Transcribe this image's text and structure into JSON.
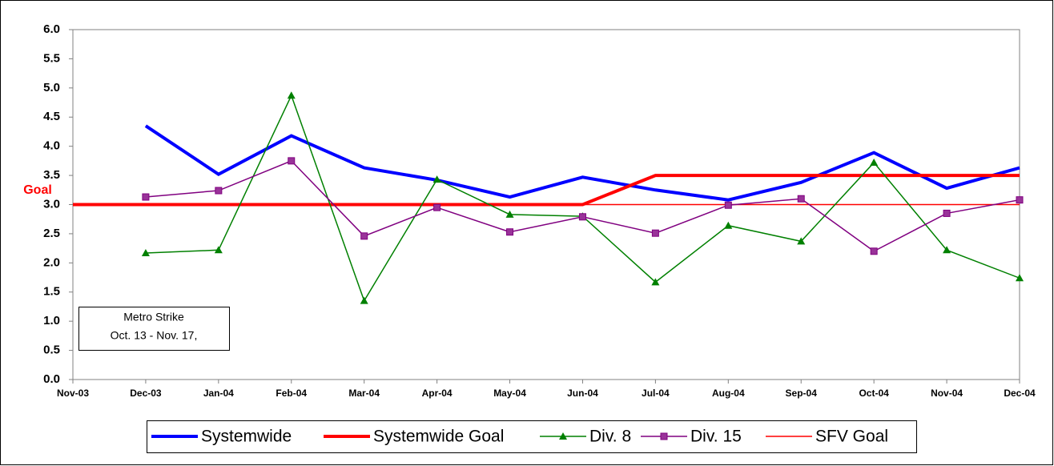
{
  "chart_data": {
    "type": "line",
    "categories": [
      "Nov-03",
      "Dec-03",
      "Jan-04",
      "Feb-04",
      "Mar-04",
      "Apr-04",
      "May-04",
      "Jun-04",
      "Jul-04",
      "Aug-04",
      "Sep-04",
      "Oct-04",
      "Nov-04",
      "Dec-04"
    ],
    "series": [
      {
        "name": "Systemwide",
        "color": "#0000ff",
        "values": [
          null,
          4.35,
          3.52,
          4.18,
          3.63,
          3.42,
          3.13,
          3.47,
          3.25,
          3.08,
          3.38,
          3.89,
          3.28,
          3.63
        ]
      },
      {
        "name": "Systemwide Goal",
        "color": "#ff0000",
        "values": [
          3.0,
          3.0,
          3.0,
          3.0,
          3.0,
          3.0,
          3.0,
          3.0,
          3.5,
          3.5,
          3.5,
          3.5,
          3.5,
          3.5
        ]
      },
      {
        "name": "Div. 8",
        "color": "#008000",
        "marker": "triangle",
        "values": [
          null,
          2.17,
          2.22,
          4.87,
          1.35,
          3.43,
          2.83,
          2.8,
          1.67,
          2.64,
          2.37,
          3.72,
          2.22,
          1.74
        ]
      },
      {
        "name": "Div. 15",
        "color": "#800080",
        "marker": "square",
        "values": [
          null,
          3.13,
          3.24,
          3.75,
          2.46,
          2.95,
          2.53,
          2.79,
          2.51,
          2.99,
          3.1,
          2.2,
          2.85,
          3.08
        ]
      },
      {
        "name": "SFV Goal",
        "color": "#ff0000",
        "values": [
          3.0,
          3.0,
          3.0,
          3.0,
          3.0,
          3.0,
          3.0,
          3.0,
          3.0,
          3.0,
          3.0,
          3.0,
          3.0,
          3.0
        ]
      }
    ],
    "ylim": [
      0,
      6
    ],
    "yticks": [
      {
        "value": 0,
        "label": "0.0"
      },
      0.5,
      {
        "value": 1,
        "label": "1.0"
      },
      1.5,
      {
        "value": 2,
        "label": "2.0"
      },
      2.5,
      {
        "value": 3,
        "label": "3.0"
      },
      3.5,
      {
        "value": 4,
        "label": "4.0"
      },
      4.5,
      {
        "value": 5,
        "label": "5.0"
      },
      5.5,
      {
        "value": 6,
        "label": "6.0"
      }
    ],
    "annotations": {
      "goal": "Goal",
      "strike": [
        "Metro Strike",
        "Oct. 13 - Nov. 17,"
      ]
    },
    "legend": "bottom",
    "grid": false
  }
}
